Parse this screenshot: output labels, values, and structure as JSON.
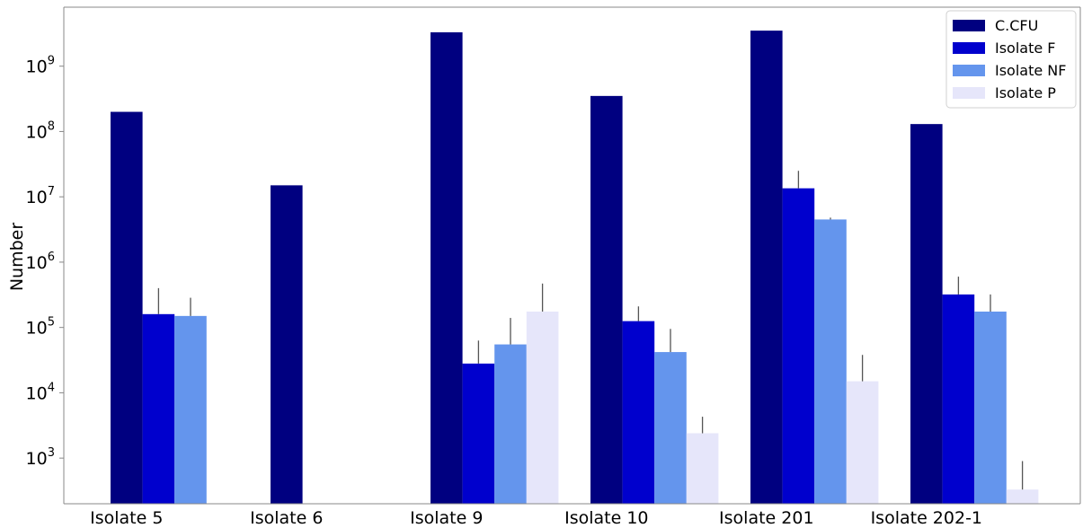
{
  "chart_data": {
    "type": "bar",
    "title": "",
    "xlabel": "",
    "ylabel": "Number",
    "yscale": "log",
    "ylim": [
      200,
      8000000000
    ],
    "yticks": [
      {
        "base": "10",
        "exp": "3",
        "value": 1000
      },
      {
        "base": "10",
        "exp": "4",
        "value": 10000
      },
      {
        "base": "10",
        "exp": "5",
        "value": 100000
      },
      {
        "base": "10",
        "exp": "6",
        "value": 1000000
      },
      {
        "base": "10",
        "exp": "7",
        "value": 10000000
      },
      {
        "base": "10",
        "exp": "8",
        "value": 100000000
      },
      {
        "base": "10",
        "exp": "9",
        "value": 1000000000
      }
    ],
    "categories": [
      "Isolate 5",
      "Isolate 6",
      "Isolate 9",
      "Isolate 10",
      "Isolate 201",
      "Isolate 202-1"
    ],
    "legend_position": "top-right",
    "series": [
      {
        "name": "C.CFU",
        "color": "#000080",
        "values": [
          200000000,
          15000000,
          3300000000,
          350000000,
          3500000000,
          130000000
        ],
        "error_upper": [
          null,
          null,
          null,
          null,
          null,
          null
        ]
      },
      {
        "name": "Isolate F",
        "color": "#0000cd",
        "values": [
          160000,
          null,
          28000,
          125000,
          13500000,
          320000
        ],
        "error_upper": [
          400000,
          null,
          63000,
          210000,
          25000000,
          600000
        ]
      },
      {
        "name": "Isolate NF",
        "color": "#6495ed",
        "values": [
          150000,
          null,
          55000,
          42000,
          4500000,
          175000
        ],
        "error_upper": [
          285000,
          null,
          140000,
          95000,
          4800000,
          320000
        ]
      },
      {
        "name": "Isolate P",
        "color": "#e6e6fa",
        "values": [
          null,
          null,
          175000,
          2400,
          15000,
          330
        ],
        "error_upper": [
          null,
          null,
          470000,
          4300,
          38000,
          900
        ]
      }
    ]
  }
}
